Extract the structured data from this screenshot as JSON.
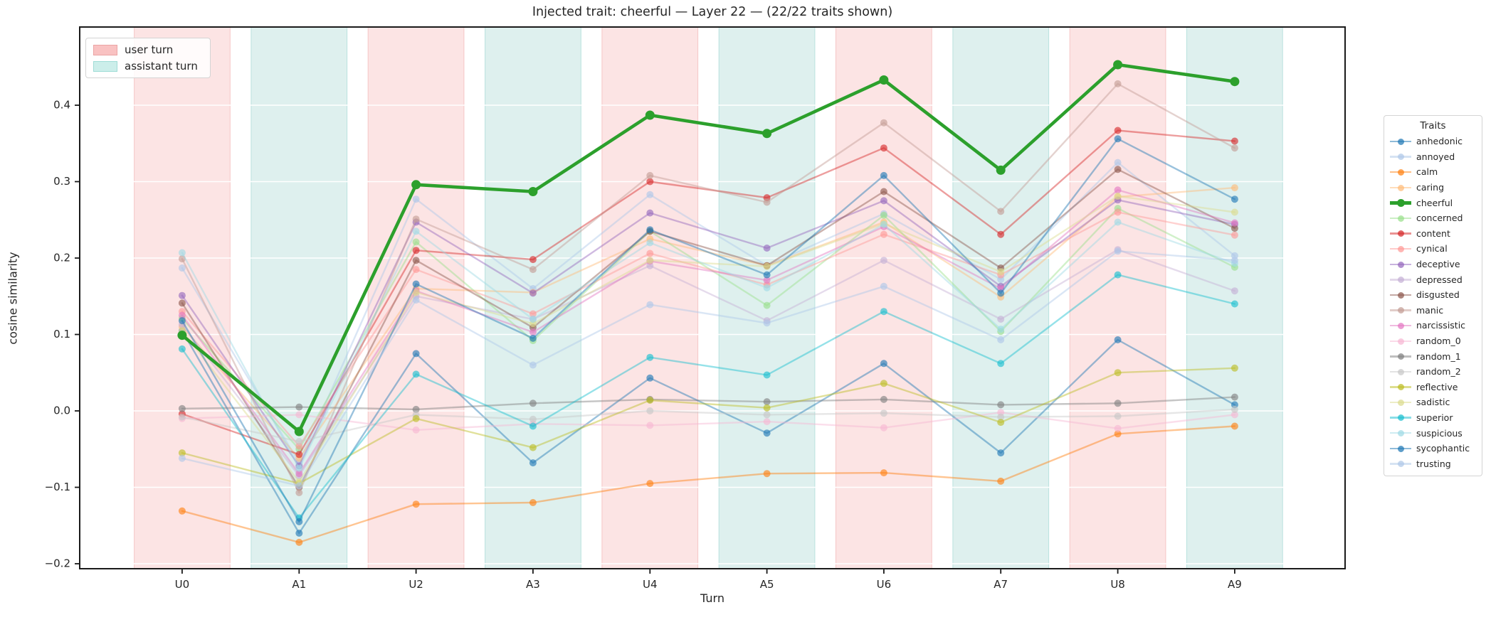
{
  "title": "Injected trait: cheerful — Layer 22 — (22/22 traits shown)",
  "turn_legend": {
    "user_label": "user turn",
    "assistant_label": "assistant turn"
  },
  "traits_legend_title": "Traits",
  "colors": {
    "user_band_fill": "#fce4e4",
    "user_band_edge": "#f6c6c6",
    "assistant_band_fill": "#def0ee",
    "assistant_band_edge": "#b9e2de",
    "grid": "#ffffff",
    "frame": "#1a1a1a",
    "tick_text": "#262626",
    "highlight": "#2ca02c"
  },
  "chart_data": {
    "type": "line",
    "title": "Injected trait: cheerful — Layer 22 — (22/22 traits shown)",
    "xlabel": "Turn",
    "ylabel": "cosine similarity",
    "x_categories": [
      "U0",
      "A1",
      "U2",
      "A3",
      "U4",
      "A5",
      "U6",
      "A7",
      "U8",
      "A9"
    ],
    "yticks": [
      -0.2,
      -0.1,
      0.0,
      0.1,
      0.2,
      0.3,
      0.4
    ],
    "ylim": [
      -0.2065,
      0.5023
    ],
    "grid": true,
    "legend_position": "right",
    "highlighted_series": "cheerful",
    "bands": {
      "user_turn_indices": [
        0,
        2,
        4,
        6,
        8
      ],
      "assistant_turn_indices": [
        1,
        3,
        5,
        7,
        9
      ],
      "half_width": 0.41
    },
    "series": [
      {
        "name": "anhedonic",
        "color": "#1f77b4",
        "values": [
          0.105,
          -0.16,
          0.075,
          -0.068,
          0.043,
          -0.029,
          0.062,
          -0.055,
          0.093,
          0.008
        ]
      },
      {
        "name": "annoyed",
        "color": "#aec7e8",
        "values": [
          0.187,
          -0.068,
          0.277,
          0.16,
          0.283,
          0.19,
          0.258,
          0.172,
          0.325,
          0.203
        ]
      },
      {
        "name": "calm",
        "color": "#ff7f0e",
        "values": [
          -0.131,
          -0.172,
          -0.122,
          -0.12,
          -0.095,
          -0.082,
          -0.081,
          -0.092,
          -0.03,
          -0.02
        ]
      },
      {
        "name": "caring",
        "color": "#ffbb78",
        "values": [
          0.11,
          -0.062,
          0.16,
          0.155,
          0.225,
          0.19,
          0.247,
          0.149,
          0.28,
          0.292
        ]
      },
      {
        "name": "cheerful",
        "color": "#2ca02c",
        "values": [
          0.099,
          -0.027,
          0.296,
          0.287,
          0.387,
          0.363,
          0.433,
          0.315,
          0.453,
          0.431
        ]
      },
      {
        "name": "concerned",
        "color": "#98df8a",
        "values": [
          0.121,
          -0.05,
          0.221,
          0.092,
          0.235,
          0.138,
          0.256,
          0.104,
          0.265,
          0.188
        ]
      },
      {
        "name": "content",
        "color": "#d62728",
        "values": [
          -0.004,
          -0.057,
          0.21,
          0.198,
          0.3,
          0.279,
          0.344,
          0.231,
          0.367,
          0.353
        ]
      },
      {
        "name": "cynical",
        "color": "#ff9896",
        "values": [
          0.13,
          -0.046,
          0.185,
          0.127,
          0.206,
          0.165,
          0.231,
          0.178,
          0.26,
          0.23
        ]
      },
      {
        "name": "deceptive",
        "color": "#9467bd",
        "values": [
          0.151,
          -0.072,
          0.247,
          0.154,
          0.259,
          0.213,
          0.275,
          0.163,
          0.276,
          0.244
        ]
      },
      {
        "name": "depressed",
        "color": "#c5b0d5",
        "values": [
          0.113,
          -0.085,
          0.15,
          0.12,
          0.19,
          0.118,
          0.197,
          0.12,
          0.211,
          0.157
        ]
      },
      {
        "name": "disgusted",
        "color": "#8c564b",
        "values": [
          0.141,
          -0.1,
          0.197,
          0.109,
          0.235,
          0.19,
          0.287,
          0.187,
          0.316,
          0.239
        ]
      },
      {
        "name": "manic",
        "color": "#c49c94",
        "values": [
          0.199,
          -0.107,
          0.251,
          0.185,
          0.308,
          0.273,
          0.377,
          0.261,
          0.428,
          0.344
        ]
      },
      {
        "name": "narcissistic",
        "color": "#e377c2",
        "values": [
          0.125,
          -0.082,
          0.157,
          0.103,
          0.196,
          0.171,
          0.241,
          0.16,
          0.289,
          0.246
        ]
      },
      {
        "name": "random_0",
        "color": "#f7b6d2",
        "values": [
          -0.01,
          -0.005,
          -0.025,
          -0.017,
          -0.019,
          -0.014,
          -0.022,
          -0.002,
          -0.023,
          -0.005
        ]
      },
      {
        "name": "random_1",
        "color": "#7f7f7f",
        "values": [
          0.003,
          0.005,
          0.002,
          0.01,
          0.015,
          0.012,
          0.015,
          0.008,
          0.01,
          0.018
        ]
      },
      {
        "name": "random_2",
        "color": "#c7c7c7",
        "values": [
          -0.008,
          -0.04,
          -0.005,
          -0.011,
          0.0,
          -0.005,
          -0.003,
          -0.008,
          -0.007,
          0.002
        ]
      },
      {
        "name": "reflective",
        "color": "#bcbd22",
        "values": [
          -0.055,
          -0.095,
          -0.01,
          -0.048,
          0.014,
          0.004,
          0.036,
          -0.015,
          0.05,
          0.056
        ]
      },
      {
        "name": "sadistic",
        "color": "#dbdb8d",
        "values": [
          0.105,
          -0.093,
          0.155,
          0.114,
          0.197,
          0.189,
          0.245,
          0.182,
          0.281,
          0.26
        ]
      },
      {
        "name": "superior",
        "color": "#17becf",
        "values": [
          0.081,
          -0.14,
          0.048,
          -0.02,
          0.07,
          0.047,
          0.13,
          0.062,
          0.178,
          0.14
        ]
      },
      {
        "name": "suspicious",
        "color": "#9edae5",
        "values": [
          0.207,
          -0.075,
          0.235,
          0.12,
          0.22,
          0.161,
          0.244,
          0.107,
          0.247,
          0.193
        ]
      },
      {
        "name": "sycophantic",
        "color": "#1f77b4",
        "values": [
          0.118,
          -0.145,
          0.166,
          0.095,
          0.237,
          0.178,
          0.308,
          0.154,
          0.356,
          0.277
        ]
      },
      {
        "name": "trusting",
        "color": "#aec7e8",
        "values": [
          -0.062,
          -0.098,
          0.145,
          0.06,
          0.139,
          0.115,
          0.163,
          0.093,
          0.209,
          0.197
        ]
      }
    ]
  }
}
